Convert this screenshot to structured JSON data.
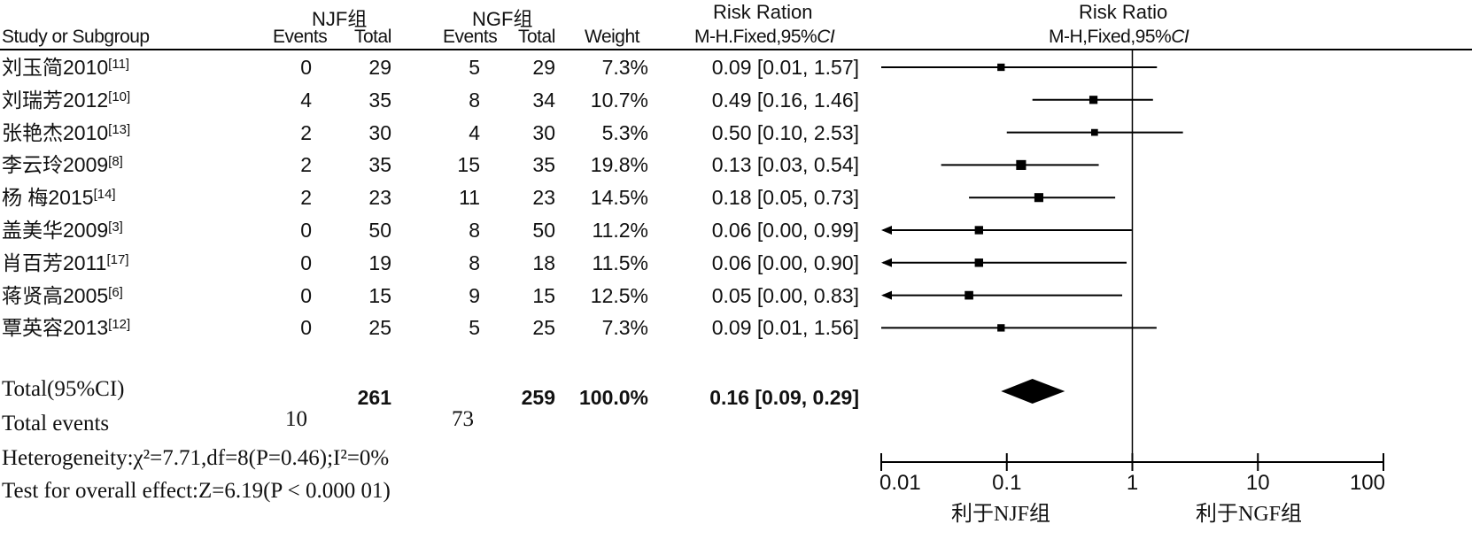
{
  "headers": {
    "study": "Study or Subgroup",
    "group1": "NJF组",
    "group2": "NGF组",
    "events": "Events",
    "total": "Total",
    "weight": "Weight",
    "rr_col_title": "Risk Ration",
    "rr_col_method": "M-H.Fixed,95%",
    "rr_plot_title": "Risk Ratio",
    "rr_plot_method": "M-H,Fixed,95%",
    "ci": "CI"
  },
  "chart_data": {
    "type": "forest",
    "x_scale": "log",
    "xlim": [
      0.01,
      100
    ],
    "x_ticks": [
      "0.01",
      "0.1",
      "1",
      "10",
      "100"
    ],
    "x_label_left": "利于NJF组",
    "x_label_right": "利于NGF组",
    "studies": [
      {
        "name": "刘玉简2010",
        "ref": "[11]",
        "e1": "0",
        "t1": "29",
        "e2": "5",
        "t2": "29",
        "weight": "7.3%",
        "rr_text": "0.09 [0.01, 1.57]",
        "rr": 0.09,
        "lo": 0.01,
        "hi": 1.57,
        "w": 7.3
      },
      {
        "name": "刘瑞芳2012",
        "ref": "[10]",
        "e1": "4",
        "t1": "35",
        "e2": "8",
        "t2": "34",
        "weight": "10.7%",
        "rr_text": "0.49 [0.16, 1.46]",
        "rr": 0.49,
        "lo": 0.16,
        "hi": 1.46,
        "w": 10.7
      },
      {
        "name": "张艳杰2010",
        "ref": "[13]",
        "e1": "2",
        "t1": "30",
        "e2": "4",
        "t2": "30",
        "weight": "5.3%",
        "rr_text": "0.50 [0.10, 2.53]",
        "rr": 0.5,
        "lo": 0.1,
        "hi": 2.53,
        "w": 5.3
      },
      {
        "name": "李云玲2009",
        "ref": "[8]",
        "e1": "2",
        "t1": "35",
        "e2": "15",
        "t2": "35",
        "weight": "19.8%",
        "rr_text": "0.13 [0.03, 0.54]",
        "rr": 0.13,
        "lo": 0.03,
        "hi": 0.54,
        "w": 19.8
      },
      {
        "name": "杨 梅2015",
        "ref": "[14]",
        "e1": "2",
        "t1": "23",
        "e2": "11",
        "t2": "23",
        "weight": "14.5%",
        "rr_text": "0.18 [0.05, 0.73]",
        "rr": 0.18,
        "lo": 0.05,
        "hi": 0.73,
        "w": 14.5
      },
      {
        "name": "盖美华2009",
        "ref": "[3]",
        "e1": "0",
        "t1": "50",
        "e2": "8",
        "t2": "50",
        "weight": "11.2%",
        "rr_text": "0.06 [0.00, 0.99]",
        "rr": 0.06,
        "lo": 0.0,
        "hi": 0.99,
        "w": 11.2
      },
      {
        "name": "肖百芳2011",
        "ref": "[17]",
        "e1": "0",
        "t1": "19",
        "e2": "8",
        "t2": "18",
        "weight": "11.5%",
        "rr_text": "0.06 [0.00, 0.90]",
        "rr": 0.06,
        "lo": 0.0,
        "hi": 0.9,
        "w": 11.5
      },
      {
        "name": "蒋贤高2005",
        "ref": "[6]",
        "e1": "0",
        "t1": "15",
        "e2": "9",
        "t2": "15",
        "weight": "12.5%",
        "rr_text": "0.05 [0.00, 0.83]",
        "rr": 0.05,
        "lo": 0.0,
        "hi": 0.83,
        "w": 12.5
      },
      {
        "name": "覃英容2013",
        "ref": "[12]",
        "e1": "0",
        "t1": "25",
        "e2": "5",
        "t2": "25",
        "weight": "7.3%",
        "rr_text": "0.09 [0.01, 1.56]",
        "rr": 0.09,
        "lo": 0.01,
        "hi": 1.56,
        "w": 7.3
      }
    ],
    "total": {
      "label": "Total(95%CI)",
      "t1": "261",
      "t2": "259",
      "weight": "100.0%",
      "rr_text": "0.16 [0.09, 0.29]",
      "rr": 0.16,
      "lo": 0.09,
      "hi": 0.29
    },
    "total_events": {
      "label": "Total events",
      "e1": "10",
      "e2": "73"
    },
    "heterogeneity": "Heterogeneity:χ²=7.71,df=8(P=0.46);I²=0%",
    "overall_effect": "Test for overall effect:Z=6.19(P < 0.000 01)"
  }
}
